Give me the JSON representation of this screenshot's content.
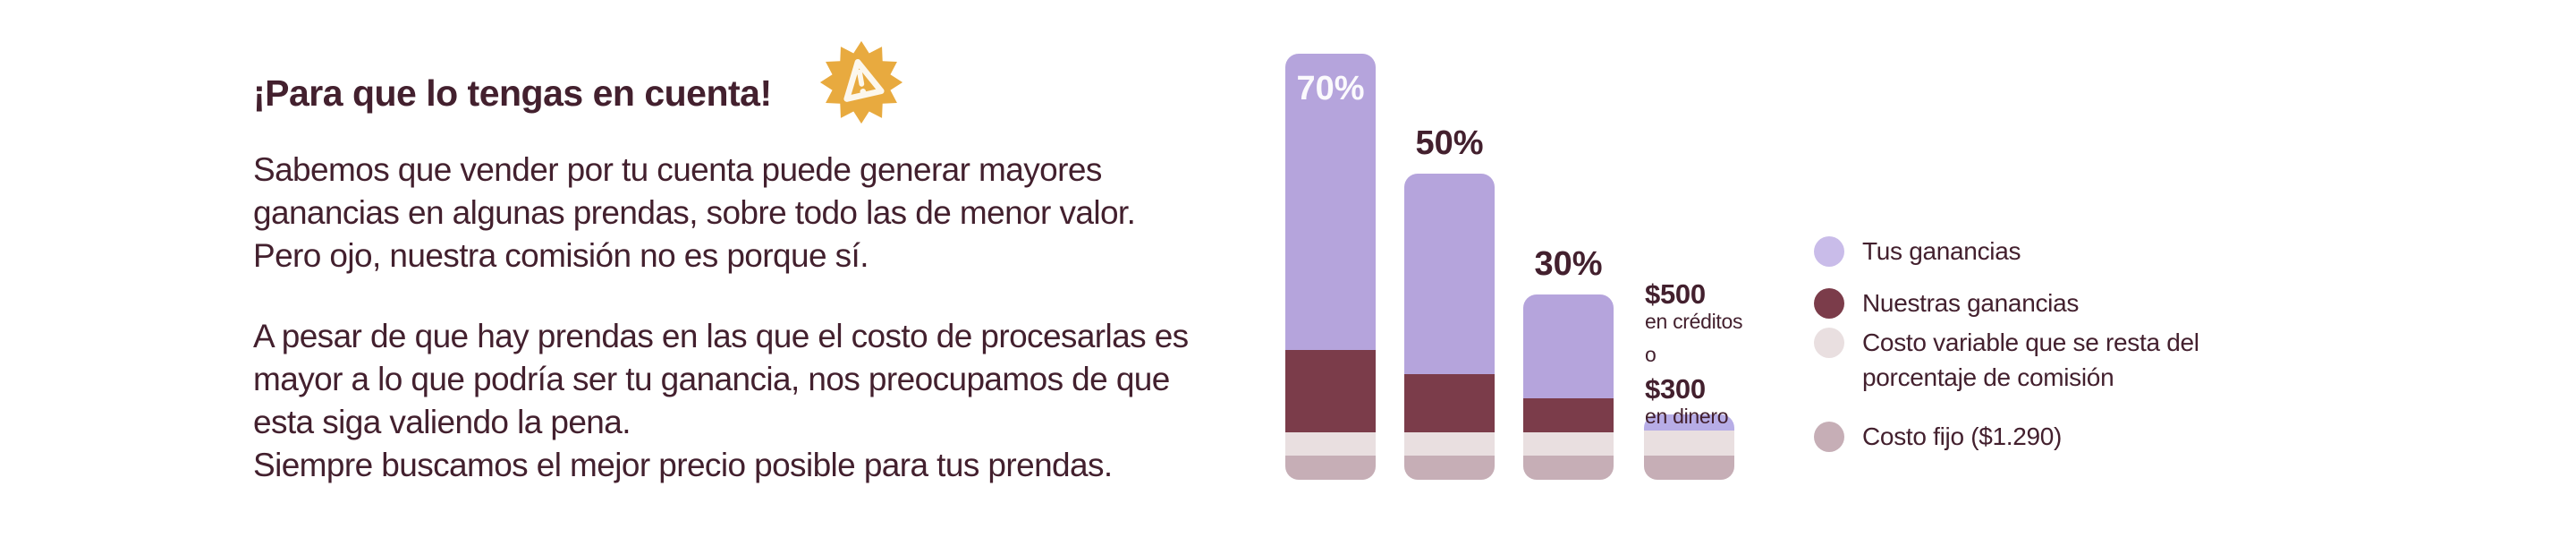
{
  "page": {
    "background_color": "#FFFFFF",
    "text_color": "#43202E"
  },
  "info_panel": {
    "title": "¡Para que lo tengas en cuenta!",
    "badge_icon": "warning-starburst-icon",
    "badge_color": "#E8AA3F",
    "paragraph1_lines": [
      "Sabemos que vender por tu cuenta puede generar mayores",
      "ganancias en algunas prendas, sobre todo las de menor valor.",
      "Pero ojo, nuestra comisión no es porque sí."
    ],
    "paragraph2_lines": [
      "A pesar de que hay prendas en las que el costo de procesarlas es",
      "mayor a lo que podría ser tu ganancia, nos preocupamos de que",
      "esta siga valiendo la pena.",
      "Siempre buscamos el mejor precio posible para tus prendas."
    ]
  },
  "chart_data": {
    "type": "bar",
    "stacked": true,
    "orientation": "vertical",
    "axes_visible": false,
    "gridlines": false,
    "legend_position": "right",
    "values_unit": "relative visual height in px (chart has no numeric axis)",
    "categories": [
      "Bar 1 (70%)",
      "Bar 2 (50%)",
      "Bar 3 (30%)",
      "Bar 4 ($500 en créditos o $300 en dinero)"
    ],
    "bar_labels": [
      {
        "text": "70%",
        "placement": "inside-top",
        "color": "#FBFAFD"
      },
      {
        "text": "50%",
        "placement": "above",
        "color": "#43202E"
      },
      {
        "text": "30%",
        "placement": "above",
        "color": "#43202E"
      },
      {
        "text": "",
        "placement": "none",
        "color": ""
      }
    ],
    "series": [
      {
        "name": "Tus ganancias",
        "color": "#B5A4DC",
        "color_by_bar": [
          "#B5A4DC",
          "#B5A4DC",
          "#B5A4DC",
          "#B7ADE6"
        ],
        "values": [
          331,
          224,
          116,
          18
        ]
      },
      {
        "name": "Nuestras ganancias",
        "color": "#7B3C4A",
        "values": [
          92,
          65,
          38,
          0
        ]
      },
      {
        "name": "Costo variable que se resta del porcentaje de comisión",
        "color": "#E9DFE0",
        "values": [
          26,
          26,
          26,
          28
        ]
      },
      {
        "name": "Costo fijo ($1.290)",
        "color": "#C6AEB6",
        "values": [
          27,
          27,
          27,
          27
        ]
      }
    ],
    "bar4_annotation": {
      "amount_credits": "$500",
      "unit_credits": "en créditos",
      "conjunction": "o",
      "amount_cash": "$300",
      "unit_cash": "en dinero"
    },
    "legend": [
      {
        "label": "Tus ganancias",
        "color": "#C9BCE9"
      },
      {
        "label": "Nuestras ganancias",
        "color": "#7B3C4A"
      },
      {
        "label": "Costo variable que se resta del\nporcentaje de comisión",
        "color": "#E9DFE0"
      },
      {
        "label": "Costo fijo ($1.290)",
        "color": "#C6AEB6"
      }
    ]
  }
}
